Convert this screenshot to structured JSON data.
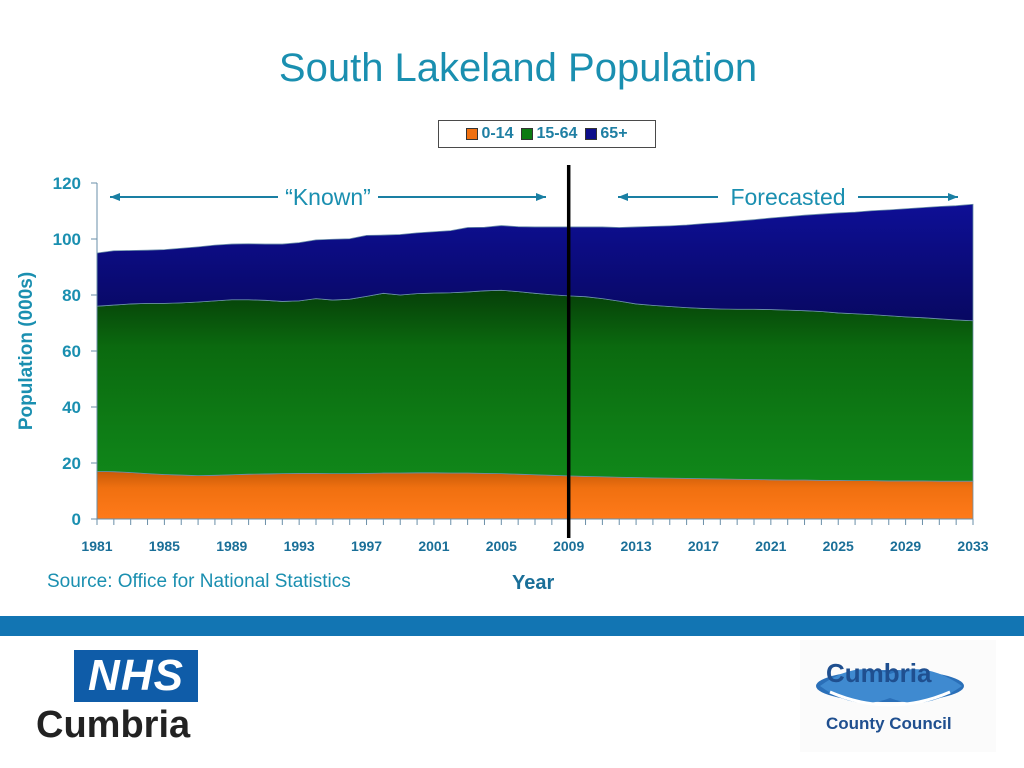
{
  "page": {
    "source_text": "Source: Office for National Statistics"
  },
  "logos": {
    "nhs": {
      "box_text": "NHS",
      "region": "Cumbria"
    },
    "council": {
      "name": "Cumbria",
      "sub": "County Council"
    }
  },
  "colors": {
    "title": "#1a8fb0",
    "band": "#1275b3",
    "series_0_14": "#f07010",
    "series_15_64": "#0d7a12",
    "series_65_plus": "#0d0e8a"
  },
  "chart_data": {
    "type": "area",
    "stacked": true,
    "title": "South Lakeland Population",
    "xlabel": "Year",
    "ylabel": "Population (000s)",
    "ylim": [
      0,
      120
    ],
    "yticks": [
      0,
      20,
      40,
      60,
      80,
      100,
      120
    ],
    "xlim": [
      1981,
      2033
    ],
    "xticks": [
      1981,
      1985,
      1989,
      1993,
      1997,
      2001,
      2005,
      2009,
      2013,
      2017,
      2021,
      2025,
      2029,
      2033
    ],
    "grid": false,
    "legend_position": "top",
    "divider_year": 2009,
    "annotations": [
      {
        "text": "“Known”",
        "from": 1981,
        "to": 2009
      },
      {
        "text": "Forecasted",
        "from": 2012,
        "to": 2033
      }
    ],
    "x": [
      1981,
      1982,
      1983,
      1984,
      1985,
      1986,
      1987,
      1988,
      1989,
      1990,
      1991,
      1992,
      1993,
      1994,
      1995,
      1996,
      1997,
      1998,
      1999,
      2000,
      2001,
      2002,
      2003,
      2004,
      2005,
      2006,
      2007,
      2008,
      2009,
      2010,
      2011,
      2012,
      2013,
      2014,
      2015,
      2016,
      2017,
      2018,
      2019,
      2020,
      2021,
      2022,
      2023,
      2024,
      2025,
      2026,
      2027,
      2028,
      2029,
      2030,
      2031,
      2032,
      2033
    ],
    "series": [
      {
        "name": "0-14",
        "color": "#f07010",
        "values": [
          17.0,
          16.9,
          16.6,
          16.2,
          15.9,
          15.7,
          15.5,
          15.6,
          15.8,
          16.0,
          16.1,
          16.2,
          16.3,
          16.3,
          16.2,
          16.2,
          16.3,
          16.4,
          16.4,
          16.5,
          16.5,
          16.4,
          16.4,
          16.3,
          16.2,
          16.0,
          15.8,
          15.6,
          15.4,
          15.2,
          15.1,
          14.9,
          14.8,
          14.7,
          14.6,
          14.5,
          14.4,
          14.3,
          14.2,
          14.1,
          14.0,
          13.9,
          13.9,
          13.8,
          13.8,
          13.7,
          13.7,
          13.6,
          13.6,
          13.6,
          13.5,
          13.5,
          13.5
        ]
      },
      {
        "name": "15-64",
        "color": "#0d7a12",
        "values": [
          59.0,
          59.5,
          60.2,
          60.8,
          61.1,
          61.5,
          62.0,
          62.3,
          62.5,
          62.3,
          62.0,
          61.5,
          61.6,
          62.4,
          62.0,
          62.3,
          63.2,
          64.2,
          63.6,
          64.0,
          64.2,
          64.4,
          64.7,
          65.2,
          65.5,
          65.2,
          64.8,
          64.5,
          64.3,
          64.2,
          63.6,
          62.9,
          62.0,
          61.6,
          61.3,
          61.0,
          60.8,
          60.7,
          60.7,
          60.8,
          60.8,
          60.7,
          60.5,
          60.3,
          59.8,
          59.6,
          59.3,
          59.0,
          58.6,
          58.3,
          58.0,
          57.6,
          57.3
        ]
      },
      {
        "name": "65+",
        "color": "#0d0e8a",
        "values": [
          19.0,
          19.4,
          19.1,
          19.0,
          19.2,
          19.5,
          19.7,
          19.9,
          19.9,
          20.0,
          20.1,
          20.5,
          20.8,
          21.0,
          21.7,
          21.6,
          21.8,
          20.8,
          21.6,
          21.7,
          21.9,
          22.2,
          23.0,
          22.7,
          23.1,
          23.2,
          23.7,
          24.2,
          24.6,
          24.9,
          25.6,
          26.3,
          27.5,
          28.2,
          28.8,
          29.5,
          30.3,
          30.9,
          31.5,
          32.0,
          32.7,
          33.4,
          34.1,
          34.8,
          35.7,
          36.3,
          37.1,
          37.8,
          38.6,
          39.3,
          40.1,
          40.8,
          41.6
        ]
      }
    ]
  }
}
